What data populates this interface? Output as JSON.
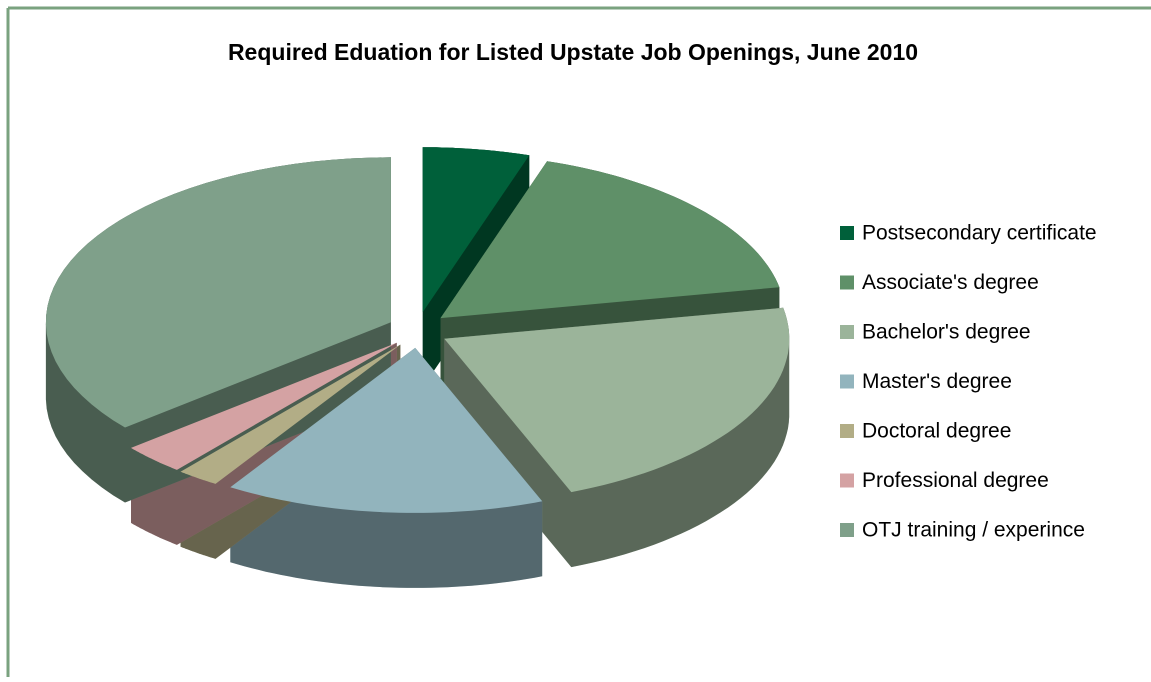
{
  "chart_data": {
    "type": "pie",
    "title": "Required Eduation for Listed Upstate Job Openings, June 2010",
    "categories": [
      "Postsecondary certificate",
      "Associate's degree",
      "Bachelor's degree",
      "Master's degree",
      "Doctoral degree",
      "Professional degree",
      "OTJ training / experince"
    ],
    "values": [
      5,
      17,
      22,
      15,
      2,
      3,
      36
    ],
    "colors": [
      "#00603a",
      "#5f9068",
      "#9bb49a",
      "#92b4bd",
      "#b2ad86",
      "#d4a2a3",
      "#7fa08a"
    ],
    "legend": "right"
  }
}
